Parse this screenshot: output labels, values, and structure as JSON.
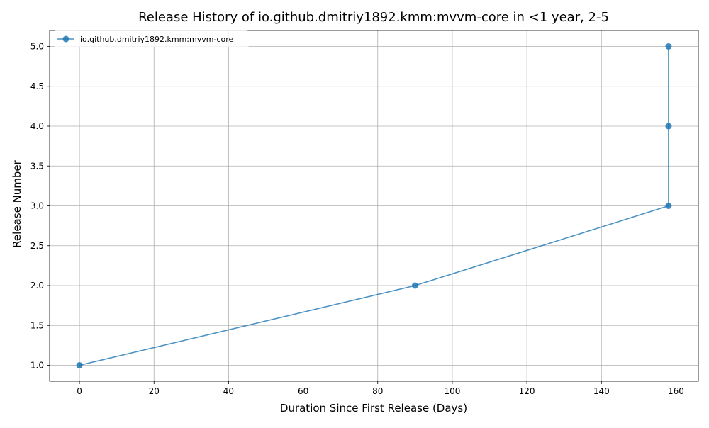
{
  "chart_data": {
    "type": "line",
    "title": "Release History of io.github.dmitriy1892.kmm:mvvm-core in <1 year, 2-5",
    "xlabel": "Duration Since First Release (Days)",
    "ylabel": "Release Number",
    "xlim": [
      -8,
      166
    ],
    "ylim": [
      0.8,
      5.2
    ],
    "xticks": [
      0,
      20,
      40,
      60,
      80,
      100,
      120,
      140,
      160
    ],
    "yticks": [
      1.0,
      1.5,
      2.0,
      2.5,
      3.0,
      3.5,
      4.0,
      4.5,
      5.0
    ],
    "xtick_labels": [
      "0",
      "20",
      "40",
      "60",
      "80",
      "100",
      "120",
      "140",
      "160"
    ],
    "ytick_labels": [
      "1.0",
      "1.5",
      "2.0",
      "2.5",
      "3.0",
      "3.5",
      "4.0",
      "4.5",
      "5.0"
    ],
    "grid": true,
    "legend_position": "top-left",
    "series": [
      {
        "name": "io.github.dmitriy1892.kmm:mvvm-core",
        "color": "#1f77b4",
        "marker": "circle",
        "x": [
          0,
          90,
          158,
          158,
          158
        ],
        "y": [
          1,
          2,
          3,
          4,
          5
        ]
      }
    ]
  }
}
